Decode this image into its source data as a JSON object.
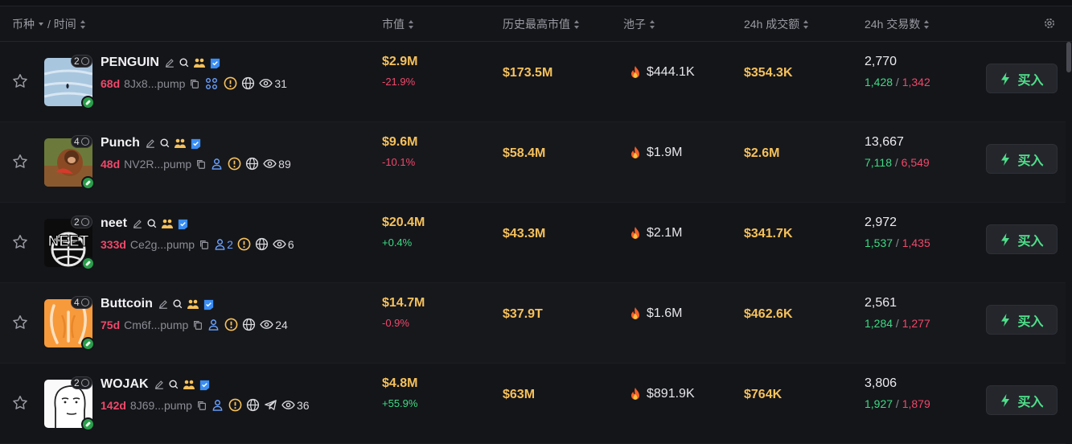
{
  "header": {
    "coin_label": "币种",
    "time_label": "/ 时间",
    "market_cap": "市值",
    "ath_market_cap": "历史最高市值",
    "pool": "池子",
    "volume_24h": "24h 成交额",
    "tx_24h": "24h 交易数"
  },
  "buy_label": "买入",
  "colors": {
    "accent_green": "#3ddc84",
    "accent_red": "#f0486a",
    "gold": "#f6c15b",
    "link_blue": "#6aa2ff"
  },
  "rows": [
    {
      "count": "2",
      "name": "PENGUIN",
      "age": "68d",
      "address": "8Jx8...pump",
      "holders": "",
      "views": "31",
      "market_cap": "$2.9M",
      "change": "-21.9%",
      "ath": "$173.5M",
      "pool": "$444.1K",
      "volume": "$354.3K",
      "txs": "2,770",
      "buys": "1,428",
      "sells": "1,342",
      "avatar": "penguin"
    },
    {
      "count": "4",
      "name": "Punch",
      "age": "48d",
      "address": "NV2R...pump",
      "holders": "",
      "views": "89",
      "market_cap": "$9.6M",
      "change": "-10.1%",
      "ath": "$58.4M",
      "pool": "$1.9M",
      "volume": "$2.6M",
      "txs": "13,667",
      "buys": "7,118",
      "sells": "6,549",
      "avatar": "monkey"
    },
    {
      "count": "2",
      "name": "neet",
      "age": "333d",
      "address": "Ce2g...pump",
      "holders": "2",
      "views": "6",
      "market_cap": "$20.4M",
      "change": "+0.4%",
      "ath": "$43.3M",
      "pool": "$2.1M",
      "volume": "$341.7K",
      "txs": "2,972",
      "buys": "1,537",
      "sells": "1,435",
      "avatar": "neet",
      "avatar_text": "NEET"
    },
    {
      "count": "4",
      "name": "Buttcoin",
      "age": "75d",
      "address": "Cm6f...pump",
      "holders": "",
      "views": "24",
      "market_cap": "$14.7M",
      "change": "-0.9%",
      "ath": "$37.9T",
      "pool": "$1.6M",
      "volume": "$462.6K",
      "txs": "2,561",
      "buys": "1,284",
      "sells": "1,277",
      "avatar": "butt"
    },
    {
      "count": "2",
      "name": "WOJAK",
      "age": "142d",
      "address": "8J69...pump",
      "holders": "",
      "views": "36",
      "market_cap": "$4.8M",
      "change": "+55.9%",
      "ath": "$63M",
      "pool": "$891.9K",
      "volume": "$764K",
      "txs": "3,806",
      "buys": "1,927",
      "sells": "1,879",
      "avatar": "wojak"
    }
  ]
}
